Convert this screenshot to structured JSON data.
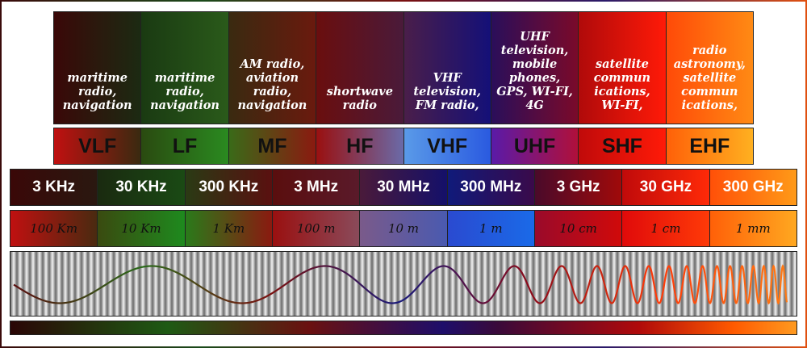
{
  "uses": [
    {
      "lines": [
        "maritime",
        "radio,",
        "navigation"
      ],
      "bg": "linear-gradient(to right,#3a0808,#1c2a12)"
    },
    {
      "lines": [
        "maritime",
        "radio,",
        "navigation"
      ],
      "bg": "linear-gradient(to right,#1a3a12,#2a5a1a)"
    },
    {
      "lines": [
        "AM radio,",
        "aviation",
        "radio,",
        "navigation"
      ],
      "bg": "linear-gradient(to right,#3a2a10,#6a1a0e)"
    },
    {
      "lines": [
        "shortwave",
        "radio"
      ],
      "bg": "linear-gradient(to right,#6a0e0e,#4a1a3a)"
    },
    {
      "lines": [
        "VHF",
        "television,",
        "FM radio,"
      ],
      "bg": "linear-gradient(to right,#4a1e4a,#141078)"
    },
    {
      "lines": [
        "UHF",
        "television,",
        "mobile",
        "phones,",
        "GPS, WI-FI,",
        "4G"
      ],
      "bg": "linear-gradient(to right,#2a0e5a,#7a0a2a)"
    },
    {
      "lines": [
        "satellite",
        "commun",
        "ications,",
        "WI-FI,"
      ],
      "bg": "linear-gradient(to right,#b00a0a,#ff1a08)"
    },
    {
      "lines": [
        "radio",
        "astronomy,",
        "satellite",
        "commun",
        "ications,"
      ],
      "bg": "linear-gradient(to right,#ff4a08,#ff8a14)"
    }
  ],
  "bands": [
    {
      "label": "VLF",
      "bg": "linear-gradient(to right,#c01010,#3a2a10)"
    },
    {
      "label": "LF",
      "bg": "linear-gradient(to right,#2a4a10,#2a8a20)"
    },
    {
      "label": "MF",
      "bg": "linear-gradient(to right,#3a6a18,#8a1a10)"
    },
    {
      "label": "HF",
      "bg": "linear-gradient(to right,#9a1010,#6a6aa8)"
    },
    {
      "label": "VHF",
      "bg": "linear-gradient(to right,#5a9ae8,#2a5ae0)"
    },
    {
      "label": "UHF",
      "bg": "linear-gradient(to right,#5a1aa8,#b0103a)"
    },
    {
      "label": "SHF",
      "bg": "linear-gradient(to right,#c00a0a,#ff1a08)"
    },
    {
      "label": "EHF",
      "bg": "linear-gradient(to right,#ff6008,#ffb020)"
    }
  ],
  "frequencies": [
    {
      "label": "3 KHz",
      "bg": "linear-gradient(to right,#3a0808,#2a1810)"
    },
    {
      "label": "30 KHz",
      "bg": "linear-gradient(to right,#1a2a10,#1a4a14)"
    },
    {
      "label": "300 KHz",
      "bg": "linear-gradient(to right,#2a3a14,#5a1010)"
    },
    {
      "label": "3 MHz",
      "bg": "linear-gradient(to right,#5a0e0e,#5a1a2a)"
    },
    {
      "label": "30 MHz",
      "bg": "linear-gradient(to right,#4a1a3a,#14106a)"
    },
    {
      "label": "300 MHz",
      "bg": "linear-gradient(to right,#101a7a,#3a0a4a)"
    },
    {
      "label": "3 GHz",
      "bg": "linear-gradient(to right,#4a0a2a,#a00a0a)"
    },
    {
      "label": "30 GHz",
      "bg": "linear-gradient(to right,#c00a0a,#ff2a08)"
    },
    {
      "label": "300 GHz",
      "bg": "linear-gradient(to right,#ff5008,#ff9a18)"
    }
  ],
  "wavelengths": [
    {
      "label": "100 Km",
      "bg": "linear-gradient(to right,#c01010,#4a2a10)"
    },
    {
      "label": "10 Km",
      "bg": "linear-gradient(to right,#3a4a10,#1e8a1e)"
    },
    {
      "label": "1 Km",
      "bg": "linear-gradient(to right,#2a7a1a,#8a1a10)"
    },
    {
      "label": "100 m",
      "bg": "linear-gradient(to right,#9a1010,#8a4a5a)"
    },
    {
      "label": "10 m",
      "bg": "linear-gradient(to right,#7a5a8a,#4a5ab0)"
    },
    {
      "label": "1 m",
      "bg": "linear-gradient(to right,#2a4ad0,#1a6ae8)"
    },
    {
      "label": "10 cm",
      "bg": "linear-gradient(to right,#9a0a2a,#d00a0a)"
    },
    {
      "label": "1 cm",
      "bg": "linear-gradient(to right,#e00a0a,#ff3a08)"
    },
    {
      "label": "1 mm",
      "bg": "linear-gradient(to right,#ff6008,#ffa820)"
    }
  ],
  "wave_colors": [
    "#5a1010",
    "#2a6a1a",
    "#7a1010",
    "#1a1a7a",
    "#8a0a1a",
    "#ff3a08",
    "#ff7a14"
  ]
}
